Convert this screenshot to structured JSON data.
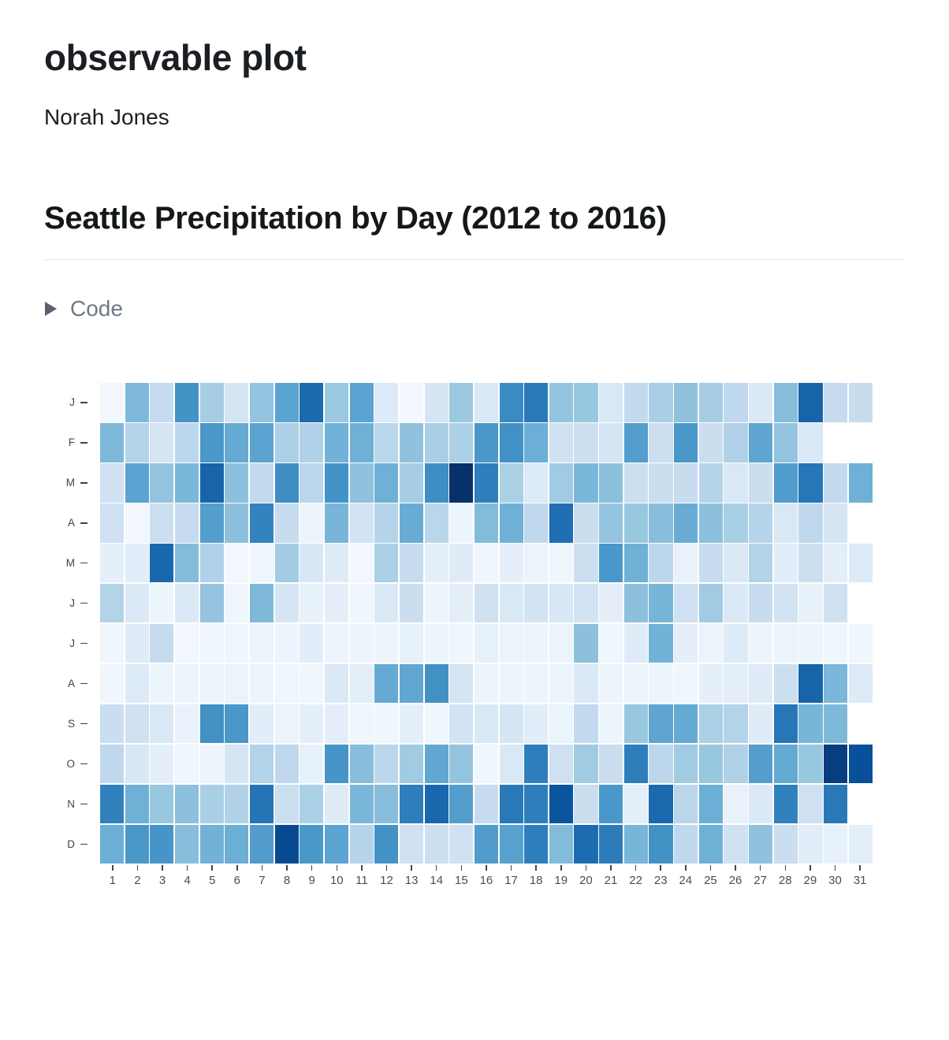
{
  "page": {
    "title": "observable plot",
    "author": "Norah Jones"
  },
  "section": {
    "heading": "Seattle Precipitation by Day (2012 to 2016)",
    "code_toggle_label": "Code"
  },
  "colors": {
    "title_text": "#1b1e22",
    "heading_text": "#15181b",
    "divider": "#e4e7ea",
    "code_text": "#6e7983",
    "toggle_icon": "#58626d",
    "axis_text": "#474e55",
    "cell_gap": "#ffffff"
  },
  "chart_data": {
    "type": "heatmap",
    "title": "Seattle Precipitation by Day (2012 to 2016)",
    "xlabel": "",
    "ylabel": "",
    "x_ticks": [
      1,
      2,
      3,
      4,
      5,
      6,
      7,
      8,
      9,
      10,
      11,
      12,
      13,
      14,
      15,
      16,
      17,
      18,
      19,
      20,
      21,
      22,
      23,
      24,
      25,
      26,
      27,
      28,
      29,
      30,
      31
    ],
    "y_ticks": [
      "J",
      "F",
      "M",
      "A",
      "M",
      "J",
      "J",
      "A",
      "S",
      "O",
      "N",
      "D"
    ],
    "legend": "none",
    "grid": "off",
    "colormap": "Blues",
    "colormap_stops": [
      "#f7fbff",
      "#deebf7",
      "#c6dbef",
      "#9ecae1",
      "#6baed6",
      "#4292c6",
      "#2171b5",
      "#08519c",
      "#08306b"
    ],
    "value_range": [
      0,
      1
    ],
    "values": [
      [
        0.03,
        0.45,
        0.25,
        0.62,
        0.35,
        0.18,
        0.4,
        0.55,
        0.78,
        0.38,
        0.55,
        0.13,
        0.02,
        0.17,
        0.38,
        0.15,
        0.65,
        0.72,
        0.4,
        0.39,
        0.15,
        0.26,
        0.34,
        0.41,
        0.35,
        0.27,
        0.14,
        0.43,
        0.8,
        0.25,
        0.24
      ],
      [
        0.45,
        0.3,
        0.17,
        0.28,
        0.6,
        0.52,
        0.55,
        0.33,
        0.32,
        0.48,
        0.49,
        0.29,
        0.41,
        0.34,
        0.33,
        0.6,
        0.63,
        0.5,
        0.2,
        0.22,
        0.17,
        0.57,
        0.22,
        0.6,
        0.23,
        0.32,
        0.54,
        0.4,
        0.15,
        null,
        null
      ],
      [
        0.2,
        0.55,
        0.4,
        0.46,
        0.8,
        0.42,
        0.26,
        0.64,
        0.29,
        0.62,
        0.41,
        0.49,
        0.35,
        0.64,
        1.0,
        0.7,
        0.33,
        0.13,
        0.37,
        0.46,
        0.42,
        0.22,
        0.23,
        0.24,
        0.3,
        0.15,
        0.23,
        0.58,
        0.73,
        0.26,
        0.49
      ],
      [
        0.21,
        0.03,
        0.22,
        0.25,
        0.57,
        0.42,
        0.68,
        0.24,
        0.05,
        0.47,
        0.19,
        0.3,
        0.51,
        0.29,
        0.05,
        0.44,
        0.49,
        0.27,
        0.76,
        0.23,
        0.4,
        0.39,
        0.43,
        0.51,
        0.42,
        0.34,
        0.3,
        0.15,
        0.27,
        0.17,
        null
      ],
      [
        0.09,
        0.11,
        0.79,
        0.44,
        0.32,
        0.03,
        0.04,
        0.36,
        0.16,
        0.12,
        0.03,
        0.33,
        0.24,
        0.09,
        0.12,
        0.04,
        0.09,
        0.06,
        0.04,
        0.22,
        0.6,
        0.49,
        0.28,
        0.07,
        0.24,
        0.14,
        0.31,
        0.11,
        0.22,
        0.1,
        0.13
      ],
      [
        0.31,
        0.14,
        0.05,
        0.14,
        0.4,
        0.04,
        0.45,
        0.17,
        0.08,
        0.09,
        0.04,
        0.14,
        0.23,
        0.05,
        0.1,
        0.2,
        0.15,
        0.19,
        0.16,
        0.19,
        0.1,
        0.42,
        0.47,
        0.21,
        0.37,
        0.14,
        0.24,
        0.19,
        0.08,
        0.2,
        null
      ],
      [
        0.04,
        0.12,
        0.25,
        0.03,
        0.04,
        0.04,
        0.05,
        0.05,
        0.11,
        0.06,
        0.05,
        0.05,
        0.08,
        0.05,
        0.04,
        0.08,
        0.06,
        0.06,
        0.06,
        0.42,
        0.04,
        0.12,
        0.48,
        0.09,
        0.06,
        0.13,
        0.05,
        0.06,
        0.05,
        0.04,
        0.04
      ],
      [
        0.04,
        0.13,
        0.05,
        0.05,
        0.05,
        0.06,
        0.05,
        0.04,
        0.04,
        0.14,
        0.1,
        0.52,
        0.53,
        0.63,
        0.17,
        0.05,
        0.05,
        0.05,
        0.05,
        0.14,
        0.05,
        0.05,
        0.05,
        0.04,
        0.09,
        0.1,
        0.12,
        0.22,
        0.8,
        0.46,
        0.13
      ],
      [
        0.23,
        0.2,
        0.15,
        0.07,
        0.63,
        0.6,
        0.11,
        0.06,
        0.09,
        0.1,
        0.04,
        0.04,
        0.09,
        0.04,
        0.19,
        0.15,
        0.17,
        0.11,
        0.06,
        0.26,
        0.05,
        0.39,
        0.54,
        0.52,
        0.33,
        0.31,
        0.12,
        0.73,
        0.47,
        0.45,
        null
      ],
      [
        0.27,
        0.16,
        0.09,
        0.04,
        0.05,
        0.17,
        0.31,
        0.27,
        0.08,
        0.61,
        0.43,
        0.28,
        0.37,
        0.53,
        0.4,
        0.04,
        0.15,
        0.7,
        0.21,
        0.37,
        0.23,
        0.7,
        0.28,
        0.37,
        0.39,
        0.32,
        0.57,
        0.52,
        0.39,
        0.95,
        0.88
      ],
      [
        0.69,
        0.49,
        0.39,
        0.42,
        0.34,
        0.32,
        0.74,
        0.22,
        0.33,
        0.12,
        0.46,
        0.43,
        0.7,
        0.79,
        0.57,
        0.24,
        0.72,
        0.7,
        0.86,
        0.23,
        0.6,
        0.09,
        0.78,
        0.29,
        0.5,
        0.07,
        0.14,
        0.69,
        0.21,
        0.72,
        null
      ],
      [
        0.5,
        0.6,
        0.61,
        0.43,
        0.48,
        0.5,
        0.58,
        0.9,
        0.6,
        0.55,
        0.3,
        0.62,
        0.2,
        0.22,
        0.2,
        0.58,
        0.56,
        0.7,
        0.44,
        0.77,
        0.71,
        0.47,
        0.63,
        0.27,
        0.49,
        0.2,
        0.41,
        0.23,
        0.11,
        0.08,
        0.1
      ]
    ]
  }
}
